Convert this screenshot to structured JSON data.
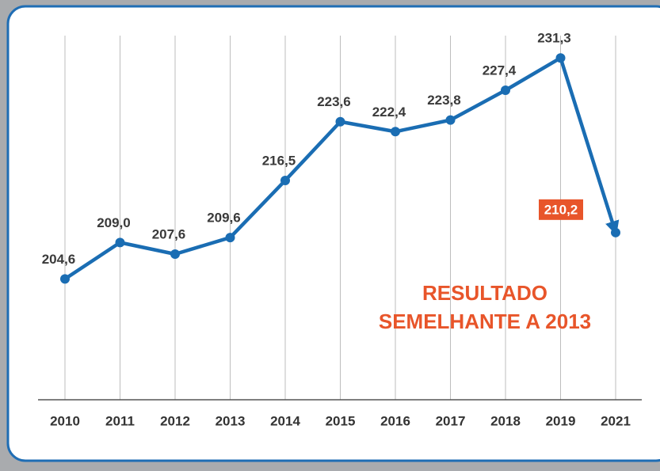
{
  "chart_data": {
    "type": "line",
    "categories": [
      "2010",
      "2011",
      "2012",
      "2013",
      "2014",
      "2015",
      "2016",
      "2017",
      "2018",
      "2019",
      "2021"
    ],
    "series": [
      {
        "color": "#1a6db3",
        "values": [
          204.6,
          209.0,
          207.6,
          209.6,
          216.5,
          223.6,
          222.4,
          223.8,
          227.4,
          231.3,
          210.2
        ],
        "value_labels": [
          "204,6",
          "209,0",
          "207,6",
          "209,6",
          "216,5",
          "223,6",
          "222,4",
          "223,8",
          "227,4",
          "231,3",
          "210,2"
        ]
      }
    ],
    "annotation": [
      "RESULTADO",
      "SEMELHANTE A 2013"
    ],
    "annotation_color": "#e8552a",
    "ylim": [
      190,
      234
    ],
    "grid": true
  }
}
